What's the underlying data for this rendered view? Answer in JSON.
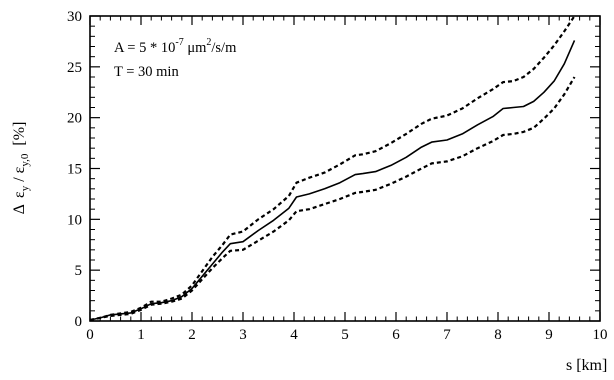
{
  "chart_data": {
    "type": "line",
    "xlabel": "s [km]",
    "ylabel": {
      "delta": "Δ",
      "eps": "ε",
      "sub_num": "y",
      "slash": " / ",
      "sub_den": "y,0",
      "unit": "[%]"
    },
    "annotations": [
      {
        "prefix": "A = 5 * 10",
        "exponent": "-7",
        "mid": " μm",
        "exponent2": "2",
        "suffix": "/s/m"
      },
      {
        "text": "T = 30 min"
      }
    ],
    "xlim": [
      0,
      10
    ],
    "ylim": [
      0,
      30
    ],
    "xticks": [
      "0",
      "1",
      "2",
      "3",
      "4",
      "5",
      "6",
      "7",
      "8",
      "9",
      "10"
    ],
    "yticks": [
      "0",
      "5",
      "10",
      "15",
      "20",
      "25",
      "30"
    ],
    "series": [
      {
        "style": "dashed",
        "x": [
          0,
          0.2,
          0.4,
          0.8,
          1.0,
          1.2,
          1.4,
          1.6,
          1.8,
          2.0,
          2.2,
          2.4,
          2.6,
          2.75,
          3.0,
          3.3,
          3.6,
          3.9,
          4.05,
          4.3,
          4.6,
          4.9,
          5.2,
          5.35,
          5.6,
          5.9,
          6.2,
          6.5,
          6.7,
          7.0,
          7.3,
          7.6,
          7.9,
          8.1,
          8.3,
          8.5,
          8.7,
          8.9,
          9.1,
          9.3,
          9.5
        ],
        "y": [
          0.1,
          0.3,
          0.6,
          0.9,
          1.3,
          1.9,
          1.9,
          2.2,
          2.6,
          3.5,
          4.9,
          6.3,
          7.5,
          8.5,
          8.8,
          10.0,
          11.0,
          12.3,
          13.6,
          14.1,
          14.6,
          15.4,
          16.3,
          16.4,
          16.7,
          17.5,
          18.4,
          19.4,
          19.9,
          20.2,
          20.9,
          21.9,
          22.8,
          23.5,
          23.6,
          24.0,
          24.8,
          25.9,
          27.1,
          28.5,
          30.0
        ]
      },
      {
        "style": "solid",
        "x": [
          0,
          0.2,
          0.4,
          0.8,
          1.0,
          1.2,
          1.4,
          1.6,
          1.8,
          2.0,
          2.2,
          2.4,
          2.6,
          2.75,
          3.0,
          3.3,
          3.6,
          3.9,
          4.05,
          4.3,
          4.6,
          4.9,
          5.2,
          5.35,
          5.6,
          5.9,
          6.2,
          6.5,
          6.7,
          7.0,
          7.3,
          7.6,
          7.9,
          8.1,
          8.3,
          8.5,
          8.7,
          8.9,
          9.1,
          9.3,
          9.5
        ],
        "y": [
          0.1,
          0.3,
          0.6,
          0.8,
          1.2,
          1.7,
          1.8,
          2.0,
          2.4,
          3.2,
          4.4,
          5.6,
          6.8,
          7.6,
          7.8,
          8.9,
          9.9,
          11.1,
          12.2,
          12.5,
          13.0,
          13.6,
          14.4,
          14.5,
          14.7,
          15.3,
          16.1,
          17.1,
          17.6,
          17.8,
          18.4,
          19.3,
          20.1,
          20.9,
          21.0,
          21.1,
          21.6,
          22.5,
          23.6,
          25.3,
          27.6
        ]
      },
      {
        "style": "dashed",
        "x": [
          0,
          0.2,
          0.4,
          0.8,
          1.0,
          1.2,
          1.4,
          1.6,
          1.8,
          2.0,
          2.2,
          2.4,
          2.6,
          2.75,
          3.0,
          3.3,
          3.6,
          3.9,
          4.05,
          4.3,
          4.6,
          4.9,
          5.2,
          5.35,
          5.6,
          5.9,
          6.2,
          6.5,
          6.7,
          7.0,
          7.3,
          7.6,
          7.9,
          8.1,
          8.3,
          8.5,
          8.7,
          8.9,
          9.1,
          9.3,
          9.5
        ],
        "y": [
          0.1,
          0.3,
          0.5,
          0.7,
          1.1,
          1.6,
          1.7,
          1.9,
          2.2,
          3.0,
          4.1,
          5.2,
          6.2,
          6.9,
          7.0,
          7.9,
          8.8,
          9.9,
          10.8,
          11.0,
          11.5,
          12.0,
          12.6,
          12.7,
          12.9,
          13.5,
          14.2,
          15.0,
          15.5,
          15.7,
          16.2,
          17.0,
          17.7,
          18.3,
          18.4,
          18.6,
          19.0,
          19.9,
          20.9,
          22.3,
          24.0
        ]
      }
    ]
  }
}
